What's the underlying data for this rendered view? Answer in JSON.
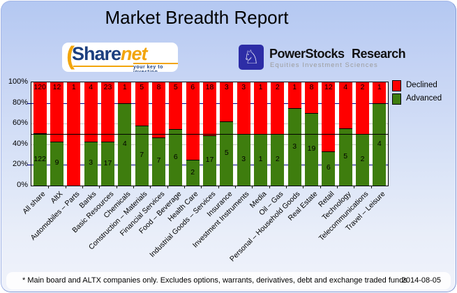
{
  "title": "Market Breadth Report",
  "logos": {
    "sharenet": {
      "paren": "(",
      "word_share": "Share",
      "word_net": "net",
      "tagline": "your key to investing"
    },
    "powerstocks": {
      "knight_glyph": "♘",
      "name": "PowerStocks Research",
      "subtitle": "Equities Investment Sciences"
    }
  },
  "legend": {
    "items": [
      {
        "label": "Declined",
        "color": "#ff0000"
      },
      {
        "label": "Advanced",
        "color": "#3e7d0e"
      }
    ]
  },
  "chart_data": {
    "type": "bar",
    "stacked_percent": true,
    "title": "Market Breadth Report",
    "categories": [
      "All share",
      "AltX",
      "Automobiles – Parts",
      "Banks",
      "Basic Resources",
      "Chemicals",
      "Construction – Materials",
      "Financial Services",
      "Food – Beverage",
      "Health Care",
      "Industrial Goods – Services",
      "Insurance",
      "Investment Instruments",
      "Media",
      "Oil – Gas",
      "Personal – Household Goods",
      "Real Estate",
      "Retail",
      "Technology",
      "Telecommunications",
      "Travel – Leisure"
    ],
    "series": [
      {
        "name": "Declined",
        "color": "#ff0000",
        "values": [
          120,
          12,
          1,
          4,
          23,
          1,
          5,
          8,
          5,
          6,
          18,
          3,
          3,
          1,
          2,
          1,
          8,
          12,
          4,
          2,
          1
        ]
      },
      {
        "name": "Advanced",
        "color": "#3e7d0e",
        "values": [
          122,
          9,
          0,
          3,
          17,
          4,
          7,
          7,
          6,
          2,
          17,
          5,
          3,
          1,
          2,
          3,
          19,
          6,
          5,
          2,
          4
        ]
      }
    ],
    "yticks": [
      "100%",
      "80%",
      "60%",
      "40%",
      "20%",
      "0%"
    ],
    "ylim": [
      0,
      100
    ],
    "reference_line_percent": 50,
    "gridlines": [
      {
        "percent": 80,
        "color": "#000080"
      },
      {
        "percent": 60,
        "color": "#c4c4c4"
      },
      {
        "percent": 40,
        "color": "#c4c4c4"
      },
      {
        "percent": 20,
        "color": "#000080"
      }
    ],
    "legend_position": "right"
  },
  "footer": {
    "note": "* Main board and ALTX companies only. Excludes options, warrants, derivatives, debt and exchange traded funds",
    "date": "2014-08-05"
  }
}
